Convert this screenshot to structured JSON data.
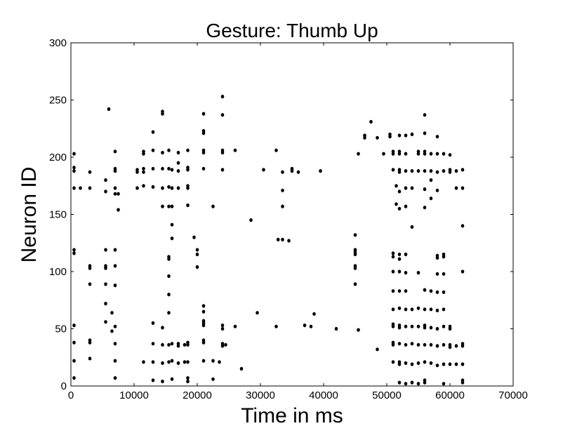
{
  "chart_data": {
    "type": "scatter",
    "title": "Gesture: Thumb Up",
    "xlabel": "Time in ms",
    "ylabel": "Neuron ID",
    "xlim": [
      0,
      70000
    ],
    "ylim": [
      0,
      300
    ],
    "xticks": [
      0,
      10000,
      20000,
      30000,
      40000,
      50000,
      60000,
      70000
    ],
    "yticks": [
      0,
      50,
      100,
      150,
      200,
      250,
      300
    ],
    "grid": false,
    "marker_color": "#000000",
    "points": [
      [
        500,
        7
      ],
      [
        500,
        22
      ],
      [
        500,
        38
      ],
      [
        500,
        53
      ],
      [
        500,
        116
      ],
      [
        500,
        119
      ],
      [
        500,
        173
      ],
      [
        500,
        188
      ],
      [
        500,
        191
      ],
      [
        500,
        203
      ],
      [
        1500,
        173
      ],
      [
        3000,
        24
      ],
      [
        3000,
        38
      ],
      [
        3000,
        40
      ],
      [
        3000,
        89
      ],
      [
        3000,
        103
      ],
      [
        3000,
        105
      ],
      [
        3000,
        173
      ],
      [
        3000,
        187
      ],
      [
        5500,
        56
      ],
      [
        5500,
        72
      ],
      [
        5500,
        89
      ],
      [
        5500,
        103
      ],
      [
        5500,
        105
      ],
      [
        5500,
        119
      ],
      [
        5500,
        170
      ],
      [
        5500,
        180
      ],
      [
        6000,
        242
      ],
      [
        6500,
        48
      ],
      [
        6500,
        64
      ],
      [
        7000,
        7
      ],
      [
        7000,
        22
      ],
      [
        7000,
        37
      ],
      [
        7000,
        52
      ],
      [
        7000,
        88
      ],
      [
        7000,
        105
      ],
      [
        7000,
        119
      ],
      [
        7000,
        168
      ],
      [
        7000,
        173
      ],
      [
        7000,
        188
      ],
      [
        7000,
        190
      ],
      [
        7000,
        205
      ],
      [
        7500,
        154
      ],
      [
        7500,
        168
      ],
      [
        10500,
        173
      ],
      [
        10500,
        187
      ],
      [
        10500,
        189
      ],
      [
        11500,
        21
      ],
      [
        11500,
        175
      ],
      [
        11500,
        187
      ],
      [
        11500,
        190
      ],
      [
        11500,
        203
      ],
      [
        11500,
        205
      ],
      [
        13000,
        5
      ],
      [
        13000,
        21
      ],
      [
        13000,
        37
      ],
      [
        13000,
        55
      ],
      [
        13000,
        174
      ],
      [
        13000,
        190
      ],
      [
        13000,
        206
      ],
      [
        13000,
        222
      ],
      [
        14500,
        4
      ],
      [
        14500,
        20
      ],
      [
        14500,
        36
      ],
      [
        14500,
        51
      ],
      [
        14500,
        157
      ],
      [
        14500,
        173
      ],
      [
        14500,
        190
      ],
      [
        14500,
        204
      ],
      [
        14500,
        238
      ],
      [
        14500,
        240
      ],
      [
        15500,
        21
      ],
      [
        15500,
        36
      ],
      [
        15500,
        64
      ],
      [
        15500,
        80
      ],
      [
        15500,
        96
      ],
      [
        15500,
        111
      ],
      [
        15500,
        113
      ],
      [
        15500,
        157
      ],
      [
        15500,
        174
      ],
      [
        15500,
        190
      ],
      [
        15500,
        206
      ],
      [
        16000,
        6
      ],
      [
        16000,
        22
      ],
      [
        16000,
        37
      ],
      [
        16000,
        129
      ],
      [
        16000,
        141
      ],
      [
        16000,
        157
      ],
      [
        16000,
        173
      ],
      [
        16000,
        189
      ],
      [
        17000,
        20
      ],
      [
        17000,
        35
      ],
      [
        17000,
        37
      ],
      [
        17000,
        173
      ],
      [
        17000,
        188
      ],
      [
        17000,
        195
      ],
      [
        17000,
        204
      ],
      [
        18000,
        21
      ],
      [
        18000,
        36
      ],
      [
        18500,
        4
      ],
      [
        18500,
        7
      ],
      [
        18500,
        21
      ],
      [
        18500,
        36
      ],
      [
        18500,
        38
      ],
      [
        18500,
        158
      ],
      [
        18500,
        173
      ],
      [
        18500,
        175
      ],
      [
        18500,
        189
      ],
      [
        18500,
        191
      ],
      [
        18500,
        206
      ],
      [
        19500,
        130
      ],
      [
        20000,
        104
      ],
      [
        20000,
        115
      ],
      [
        20000,
        119
      ],
      [
        21000,
        22
      ],
      [
        21000,
        38
      ],
      [
        21000,
        40
      ],
      [
        21000,
        53
      ],
      [
        21000,
        55
      ],
      [
        21000,
        57
      ],
      [
        21000,
        65
      ],
      [
        21000,
        70
      ],
      [
        21000,
        190
      ],
      [
        21000,
        204
      ],
      [
        21000,
        206
      ],
      [
        21000,
        221
      ],
      [
        21000,
        223
      ],
      [
        21000,
        238
      ],
      [
        22500,
        6
      ],
      [
        22500,
        22
      ],
      [
        22500,
        157
      ],
      [
        23500,
        21
      ],
      [
        24000,
        35
      ],
      [
        24000,
        37
      ],
      [
        24000,
        50
      ],
      [
        24000,
        53
      ],
      [
        24000,
        189
      ],
      [
        24000,
        204
      ],
      [
        24000,
        206
      ],
      [
        24000,
        237
      ],
      [
        24000,
        253
      ],
      [
        24500,
        36
      ],
      [
        26000,
        52
      ],
      [
        26000,
        206
      ],
      [
        27000,
        15
      ],
      [
        28500,
        145
      ],
      [
        29500,
        64
      ],
      [
        30500,
        189
      ],
      [
        32500,
        52
      ],
      [
        32500,
        206
      ],
      [
        32800,
        128
      ],
      [
        33500,
        128
      ],
      [
        33500,
        157
      ],
      [
        33500,
        171
      ],
      [
        33500,
        187
      ],
      [
        34500,
        127
      ],
      [
        35000,
        188
      ],
      [
        35000,
        190
      ],
      [
        36000,
        187
      ],
      [
        37000,
        53
      ],
      [
        38000,
        52
      ],
      [
        38500,
        63
      ],
      [
        39500,
        188
      ],
      [
        42000,
        50
      ],
      [
        45000,
        89
      ],
      [
        45000,
        103
      ],
      [
        45000,
        105
      ],
      [
        45000,
        115
      ],
      [
        45000,
        117
      ],
      [
        45000,
        119
      ],
      [
        45000,
        132
      ],
      [
        45500,
        49
      ],
      [
        45500,
        203
      ],
      [
        46500,
        217
      ],
      [
        46500,
        219
      ],
      [
        47500,
        231
      ],
      [
        48500,
        32
      ],
      [
        48500,
        217
      ],
      [
        49500,
        203
      ],
      [
        50500,
        218
      ],
      [
        50500,
        220
      ],
      [
        51000,
        21
      ],
      [
        51000,
        36
      ],
      [
        51000,
        38
      ],
      [
        51000,
        52
      ],
      [
        51000,
        54
      ],
      [
        51000,
        67
      ],
      [
        51000,
        83
      ],
      [
        51000,
        100
      ],
      [
        51000,
        113
      ],
      [
        51000,
        116
      ],
      [
        51000,
        189
      ],
      [
        51000,
        203
      ],
      [
        51000,
        205
      ],
      [
        51500,
        159
      ],
      [
        51500,
        175
      ],
      [
        52000,
        3
      ],
      [
        52000,
        19
      ],
      [
        52000,
        21
      ],
      [
        52000,
        37
      ],
      [
        52000,
        51
      ],
      [
        52000,
        53
      ],
      [
        52000,
        68
      ],
      [
        52000,
        83
      ],
      [
        52000,
        100
      ],
      [
        52000,
        111
      ],
      [
        52000,
        115
      ],
      [
        52000,
        155
      ],
      [
        52000,
        170
      ],
      [
        52000,
        187
      ],
      [
        52000,
        189
      ],
      [
        52000,
        203
      ],
      [
        52000,
        205
      ],
      [
        52000,
        219
      ],
      [
        53000,
        2
      ],
      [
        53000,
        20
      ],
      [
        53000,
        36
      ],
      [
        53000,
        52
      ],
      [
        53000,
        67
      ],
      [
        53000,
        83
      ],
      [
        53000,
        99
      ],
      [
        53000,
        115
      ],
      [
        53000,
        157
      ],
      [
        53000,
        173
      ],
      [
        53000,
        188
      ],
      [
        53000,
        203
      ],
      [
        53000,
        219
      ],
      [
        54000,
        3
      ],
      [
        54000,
        19
      ],
      [
        54000,
        37
      ],
      [
        54000,
        52
      ],
      [
        54000,
        67
      ],
      [
        54000,
        139
      ],
      [
        54000,
        173
      ],
      [
        54000,
        188
      ],
      [
        54000,
        220
      ],
      [
        55000,
        2
      ],
      [
        55000,
        20
      ],
      [
        55000,
        36
      ],
      [
        55000,
        52
      ],
      [
        55000,
        68
      ],
      [
        55000,
        99
      ],
      [
        55000,
        188
      ],
      [
        55000,
        203
      ],
      [
        55000,
        205
      ],
      [
        56000,
        3
      ],
      [
        56000,
        5
      ],
      [
        56000,
        21
      ],
      [
        56000,
        36
      ],
      [
        56000,
        51
      ],
      [
        56000,
        53
      ],
      [
        56000,
        67
      ],
      [
        56000,
        84
      ],
      [
        56000,
        156
      ],
      [
        56000,
        172
      ],
      [
        56000,
        188
      ],
      [
        56000,
        203
      ],
      [
        56000,
        205
      ],
      [
        56000,
        221
      ],
      [
        56000,
        237
      ],
      [
        57000,
        20
      ],
      [
        57000,
        36
      ],
      [
        57000,
        51
      ],
      [
        57000,
        67
      ],
      [
        57000,
        83
      ],
      [
        57000,
        164
      ],
      [
        57000,
        180
      ],
      [
        57000,
        188
      ],
      [
        57000,
        203
      ],
      [
        58000,
        18
      ],
      [
        58000,
        35
      ],
      [
        58000,
        50
      ],
      [
        58000,
        66
      ],
      [
        58000,
        82
      ],
      [
        58000,
        98
      ],
      [
        58000,
        112
      ],
      [
        58000,
        114
      ],
      [
        58000,
        171
      ],
      [
        58000,
        187
      ],
      [
        58000,
        203
      ],
      [
        58000,
        218
      ],
      [
        59000,
        2
      ],
      [
        59000,
        19
      ],
      [
        59000,
        36
      ],
      [
        59000,
        52
      ],
      [
        59000,
        67
      ],
      [
        59000,
        82
      ],
      [
        59000,
        98
      ],
      [
        59000,
        113
      ],
      [
        59000,
        115
      ],
      [
        59000,
        188
      ],
      [
        59000,
        203
      ],
      [
        60000,
        19
      ],
      [
        60000,
        34
      ],
      [
        60000,
        36
      ],
      [
        60000,
        50
      ],
      [
        60000,
        52
      ],
      [
        60000,
        187
      ],
      [
        60000,
        189
      ],
      [
        60000,
        202
      ],
      [
        61000,
        19
      ],
      [
        61000,
        35
      ],
      [
        61000,
        173
      ],
      [
        61000,
        188
      ],
      [
        62000,
        3
      ],
      [
        62000,
        5
      ],
      [
        62000,
        19
      ],
      [
        62000,
        35
      ],
      [
        62000,
        37
      ],
      [
        62000,
        100
      ],
      [
        62000,
        140
      ],
      [
        62000,
        173
      ],
      [
        62000,
        189
      ]
    ]
  }
}
